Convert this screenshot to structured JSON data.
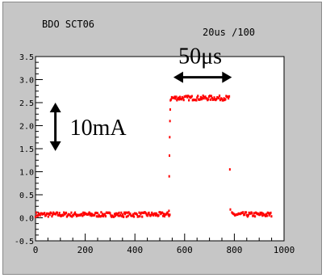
{
  "header": {
    "channel_label": "BDO SCT06",
    "timebase_label": "20us  /100"
  },
  "chart_data": {
    "type": "scatter",
    "title": "",
    "xlabel": "",
    "ylabel": "",
    "xlim": [
      0,
      1000
    ],
    "ylim": [
      -0.5,
      3.5
    ],
    "x_ticks": [
      0,
      200,
      400,
      600,
      800,
      1000
    ],
    "x_tick_labels": [
      "0",
      "200",
      "400",
      "600",
      "800",
      "1000"
    ],
    "y_ticks": [
      -0.5,
      0.0,
      0.5,
      1.0,
      1.5,
      2.0,
      2.5,
      3.0,
      3.5
    ],
    "y_tick_labels": [
      "-0.5",
      "0.0",
      "0.5",
      "1.0",
      "1.5",
      "2.0",
      "2.5",
      "3.0",
      "3.5"
    ],
    "grid": false,
    "series": [
      {
        "color": "#ff0000",
        "segments": [
          {
            "x_start": 0,
            "x_end": 540,
            "level": 0.07
          },
          {
            "x_start": 545,
            "x_end": 780,
            "level": 2.6
          },
          {
            "x_start": 790,
            "x_end": 950,
            "level": 0.07
          }
        ],
        "edge_points": [
          {
            "x": 537,
            "y": 0.15
          },
          {
            "x": 538,
            "y": 0.9
          },
          {
            "x": 539,
            "y": 1.35
          },
          {
            "x": 540,
            "y": 1.75
          },
          {
            "x": 541,
            "y": 2.1
          },
          {
            "x": 542,
            "y": 2.35
          },
          {
            "x": 543,
            "y": 2.55
          },
          {
            "x": 782,
            "y": 1.05
          },
          {
            "x": 784,
            "y": 0.18
          }
        ]
      }
    ],
    "annotations": [
      {
        "text": "50μs",
        "kind": "horizontal-arrow",
        "x1": 555,
        "x2": 790,
        "y": 3.05
      },
      {
        "text": "10mA",
        "kind": "vertical-arrow",
        "x": 80,
        "y1": 2.5,
        "y2": 1.45
      }
    ]
  }
}
